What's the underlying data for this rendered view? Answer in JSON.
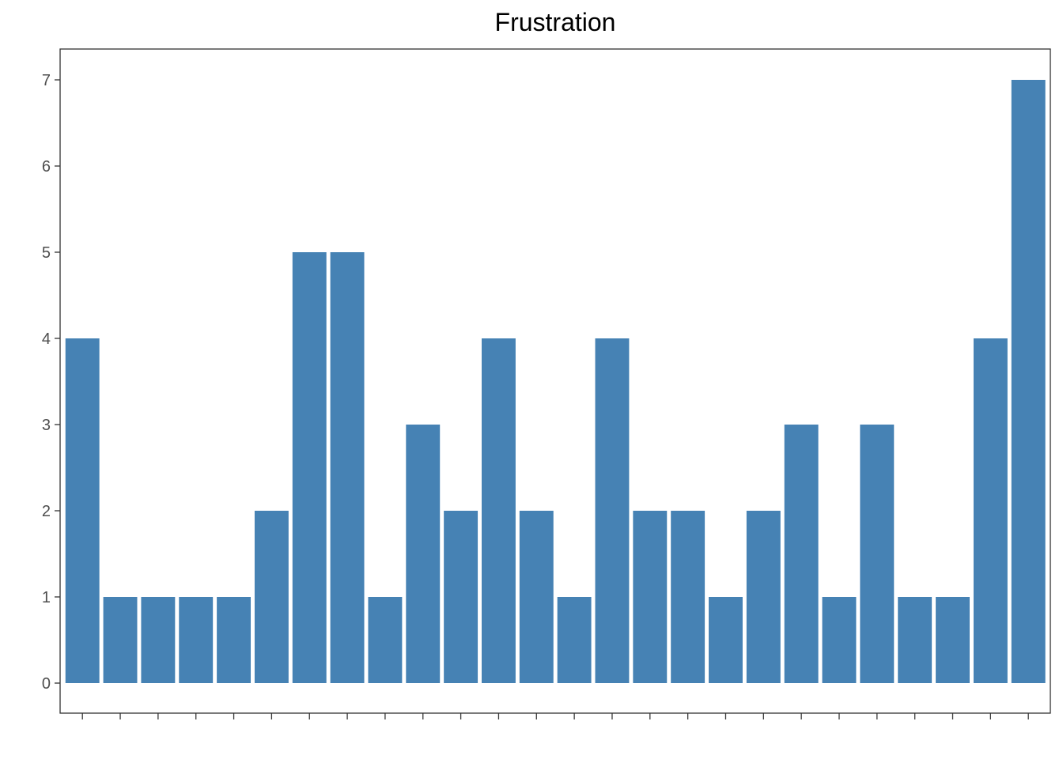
{
  "chart_data": {
    "type": "bar",
    "title": "Frustration",
    "xlabel": "",
    "ylabel": "",
    "categories": [
      "",
      "",
      "",
      "",
      "",
      "",
      "",
      "",
      "",
      "",
      "",
      "",
      "",
      "",
      "",
      "",
      "",
      "",
      "",
      "",
      "",
      "",
      "",
      "",
      "",
      ""
    ],
    "values": [
      4,
      1,
      1,
      1,
      1,
      2,
      5,
      5,
      1,
      3,
      2,
      4,
      2,
      1,
      4,
      2,
      2,
      1,
      2,
      3,
      1,
      3,
      1,
      1,
      4,
      7
    ],
    "ylim": [
      -0.35,
      7.35
    ],
    "yticks": [
      0,
      1,
      2,
      3,
      4,
      5,
      6,
      7
    ],
    "grid": false,
    "bar_color": "#4682B4",
    "axis_color": "#333333",
    "tick_label_color": "#4d4d4d"
  }
}
